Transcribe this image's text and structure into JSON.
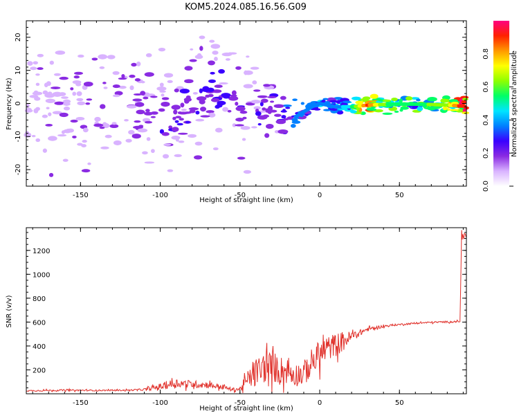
{
  "title": "KOM5.2024.085.16.56.G09",
  "colors": {
    "snr_line": "#e0302a",
    "background": "#ffffff",
    "axis": "#000000"
  },
  "chart_data": [
    {
      "type": "heatmap",
      "title": "KOM5.2024.085.16.56.G09",
      "xlabel": "Height of straight line (km)",
      "ylabel": "Frequency (Hz)",
      "xlim": [
        -184,
        92
      ],
      "ylim": [
        -25,
        25
      ],
      "x_ticks": [
        -150,
        -100,
        -50,
        0,
        50
      ],
      "y_ticks": [
        -20,
        -10,
        0,
        10,
        20
      ],
      "colorbar": {
        "label": "Normalized spectral amplitude",
        "range": [
          0,
          1
        ],
        "ticks": [
          0.0,
          0.2,
          0.4,
          0.6,
          0.8
        ],
        "colors": [
          "#ffffff",
          "#d9b3ff",
          "#8a2be2",
          "#3a00ff",
          "#0080ff",
          "#00e5ff",
          "#00ff66",
          "#8fff00",
          "#ffff00",
          "#ff9900",
          "#ff2200",
          "#ff0080"
        ]
      },
      "description": "Scattered weak Doppler blobs (normalized amplitude ~0.1-0.3) spread over -20..20 Hz below -50 km, converging toward ~0 Hz above -25 km, strongest (0.5-0.9) near 0 Hz from about 25 km to 90 km",
      "ridge": {
        "x": [
          -184,
          -160,
          -140,
          -120,
          -105,
          -95,
          -85,
          -75,
          -65,
          -55,
          -50,
          -45,
          -35,
          -25,
          -15,
          -5,
          0,
          10,
          20,
          30,
          40,
          50,
          60,
          70,
          80,
          90
        ],
        "y": [
          -1,
          -2,
          -3,
          -1,
          -2,
          -5,
          -2,
          3,
          4,
          5,
          -4,
          -2,
          0,
          -3,
          -4,
          -1,
          0,
          -1,
          -1,
          -0.5,
          -0.3,
          -0.2,
          -0.2,
          -0.3,
          -0.5,
          -0.8
        ],
        "amplitude": [
          0.12,
          0.15,
          0.13,
          0.15,
          0.2,
          0.25,
          0.22,
          0.25,
          0.25,
          0.2,
          0.22,
          0.2,
          0.22,
          0.25,
          0.35,
          0.35,
          0.4,
          0.35,
          0.5,
          0.9,
          0.6,
          0.55,
          0.55,
          0.6,
          0.65,
          0.95
        ]
      }
    },
    {
      "type": "line",
      "xlabel": "Height of straight line (km)",
      "ylabel": "SNR (v/v)",
      "xlim": [
        -184,
        92
      ],
      "ylim": [
        0,
        1390
      ],
      "x_ticks": [
        -150,
        -100,
        -50,
        0,
        50
      ],
      "y_ticks": [
        200,
        400,
        600,
        800,
        1000,
        1200
      ],
      "series": [
        {
          "x": [
            -184,
            -160,
            -140,
            -120,
            -110,
            -100,
            -90,
            -80,
            -70,
            -60,
            -55,
            -50,
            -45,
            -40,
            -35,
            -30,
            -25,
            -20,
            -15,
            -10,
            -5,
            0,
            5,
            10,
            15,
            20,
            25,
            30,
            40,
            50,
            60,
            70,
            80,
            88,
            89,
            90,
            92
          ],
          "y": [
            25,
            30,
            28,
            30,
            35,
            60,
            90,
            80,
            75,
            55,
            35,
            40,
            120,
            180,
            220,
            230,
            200,
            190,
            160,
            170,
            260,
            330,
            380,
            410,
            440,
            480,
            510,
            540,
            565,
            580,
            590,
            598,
            602,
            605,
            1350,
            1320,
            1320
          ],
          "noise_amplitude": [
            8,
            10,
            8,
            8,
            12,
            40,
            55,
            45,
            40,
            30,
            20,
            30,
            110,
            170,
            190,
            190,
            170,
            160,
            140,
            150,
            170,
            170,
            150,
            140,
            120,
            60,
            40,
            25,
            15,
            10,
            10,
            10,
            10,
            10,
            40,
            40,
            40
          ]
        }
      ]
    }
  ]
}
